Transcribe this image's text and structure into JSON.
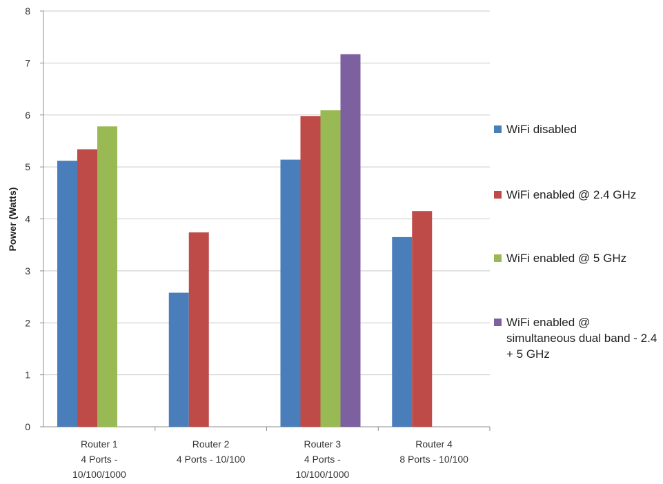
{
  "chart_data": {
    "type": "bar",
    "title": "",
    "xlabel": "",
    "ylabel": "Power (Watts)",
    "ylim": [
      0,
      8
    ],
    "yticks": [
      0,
      1,
      2,
      3,
      4,
      5,
      6,
      7,
      8
    ],
    "grid": true,
    "legend_position": "right",
    "categories": [
      [
        "Router 1",
        "4 Ports -",
        "10/100/1000"
      ],
      [
        "Router 2",
        "4 Ports - 10/100"
      ],
      [
        "Router 3",
        "4 Ports -",
        "10/100/1000"
      ],
      [
        "Router 4",
        "8 Ports - 10/100"
      ]
    ],
    "series": [
      {
        "name": "WiFi disabled",
        "color": "#4a7ebb",
        "values": [
          5.12,
          2.58,
          5.14,
          3.65
        ]
      },
      {
        "name": "WiFi enabled @ 2.4 GHz",
        "color": "#be4b48",
        "values": [
          5.34,
          3.74,
          5.98,
          4.15
        ]
      },
      {
        "name": "WiFi enabled @ 5 GHz",
        "color": "#98b954",
        "values": [
          5.78,
          null,
          6.09,
          null
        ]
      },
      {
        "name": "WiFi enabled @ simultaneous dual band - 2.4 + 5 GHz",
        "color": "#7d60a0",
        "values": [
          null,
          null,
          7.17,
          null
        ]
      }
    ]
  }
}
